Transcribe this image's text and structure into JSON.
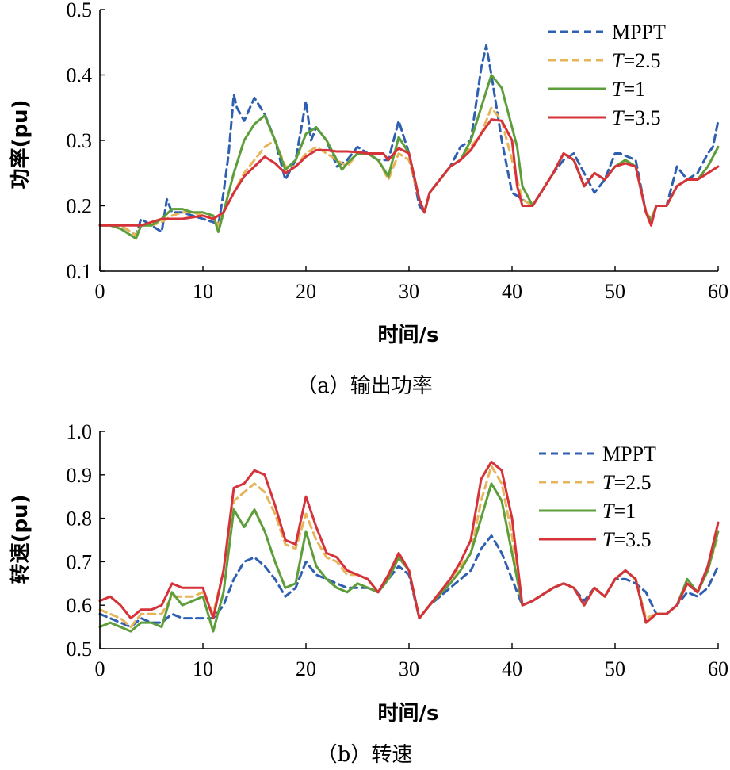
{
  "chart_data": [
    {
      "type": "line",
      "caption": "（a）输出功率",
      "xlabel": "时间/s",
      "ylabel": "功率(pu)",
      "xlim": [
        0,
        60
      ],
      "ylim": [
        0.1,
        0.5
      ],
      "xticks": [
        "0",
        "10",
        "20",
        "30",
        "40",
        "50",
        "60"
      ],
      "yticks": [
        "0.1",
        "0.2",
        "0.3",
        "0.4",
        "0.5"
      ],
      "legend_position": "top-right",
      "series": [
        {
          "name": "MPPT",
          "color": "#2e5fb0",
          "dash": true,
          "x": [
            0,
            1,
            2,
            3,
            3.5,
            4,
            5,
            6,
            6.5,
            7,
            8,
            9,
            10,
            11,
            11.5,
            12,
            12.5,
            13,
            13.3,
            14,
            15,
            16,
            17,
            18,
            19,
            20,
            20.5,
            21,
            22,
            23,
            24,
            25,
            26,
            27,
            28,
            28.5,
            29,
            30,
            31,
            31.5,
            32,
            34,
            35,
            36,
            37,
            37.5,
            38,
            39,
            40,
            41,
            42,
            44,
            45,
            46,
            47,
            48,
            49,
            50,
            50.5,
            52,
            53,
            53.5,
            54,
            55,
            56,
            57,
            58,
            59,
            59.5,
            60
          ],
          "y": [
            0.17,
            0.17,
            0.17,
            0.16,
            0.155,
            0.18,
            0.17,
            0.16,
            0.21,
            0.19,
            0.19,
            0.185,
            0.18,
            0.175,
            0.17,
            0.22,
            0.28,
            0.37,
            0.35,
            0.33,
            0.365,
            0.34,
            0.3,
            0.24,
            0.27,
            0.36,
            0.3,
            0.32,
            0.3,
            0.26,
            0.27,
            0.29,
            0.28,
            0.27,
            0.27,
            0.3,
            0.33,
            0.28,
            0.2,
            0.19,
            0.22,
            0.26,
            0.29,
            0.3,
            0.41,
            0.445,
            0.4,
            0.3,
            0.22,
            0.21,
            0.2,
            0.25,
            0.27,
            0.28,
            0.25,
            0.22,
            0.24,
            0.28,
            0.28,
            0.27,
            0.19,
            0.18,
            0.2,
            0.2,
            0.26,
            0.24,
            0.25,
            0.28,
            0.29,
            0.33
          ]
        },
        {
          "name": "T=2.5",
          "color": "#e6b55a",
          "dash": true,
          "x": [
            0,
            1,
            2,
            3,
            3.5,
            4,
            5,
            6,
            7,
            8,
            9,
            10,
            11,
            11.5,
            12,
            13,
            14,
            15,
            16,
            17,
            18,
            19,
            20,
            21,
            22,
            23,
            24,
            25,
            26,
            27,
            28,
            29,
            30,
            31,
            31.5,
            32,
            34,
            35,
            36,
            37,
            38,
            39,
            40,
            41,
            42,
            44,
            45,
            46,
            47,
            48,
            49,
            50,
            51,
            52,
            53,
            53.5,
            54,
            55,
            56,
            57,
            58,
            59,
            60
          ],
          "y": [
            0.17,
            0.17,
            0.17,
            0.16,
            0.155,
            0.17,
            0.17,
            0.175,
            0.185,
            0.19,
            0.19,
            0.185,
            0.18,
            0.17,
            0.19,
            0.22,
            0.25,
            0.27,
            0.29,
            0.3,
            0.26,
            0.26,
            0.28,
            0.29,
            0.28,
            0.27,
            0.26,
            0.28,
            0.28,
            0.27,
            0.24,
            0.28,
            0.27,
            0.21,
            0.19,
            0.22,
            0.26,
            0.27,
            0.29,
            0.31,
            0.35,
            0.33,
            0.27,
            0.21,
            0.2,
            0.25,
            0.28,
            0.27,
            0.23,
            0.25,
            0.24,
            0.26,
            0.27,
            0.26,
            0.19,
            0.18,
            0.2,
            0.2,
            0.23,
            0.24,
            0.24,
            0.25,
            0.26
          ]
        },
        {
          "name": "T=1",
          "color": "#5e9e3a",
          "dash": false,
          "x": [
            0,
            1,
            2,
            3,
            3.5,
            4,
            5,
            6,
            7,
            8,
            9,
            10,
            11,
            11.5,
            12,
            13,
            14,
            15,
            16,
            17,
            18,
            19,
            20,
            21,
            22,
            23,
            23.5,
            24,
            25,
            26,
            27,
            28,
            29,
            30,
            31,
            31.5,
            32,
            34,
            35,
            36,
            37,
            38,
            39,
            40,
            40.5,
            41,
            42,
            44,
            45,
            46,
            47,
            48,
            49,
            50,
            51,
            52,
            53,
            53.5,
            54,
            55,
            56,
            57,
            58,
            59,
            60
          ],
          "y": [
            0.17,
            0.17,
            0.165,
            0.155,
            0.15,
            0.17,
            0.17,
            0.18,
            0.195,
            0.195,
            0.19,
            0.19,
            0.185,
            0.16,
            0.19,
            0.25,
            0.3,
            0.325,
            0.338,
            0.3,
            0.255,
            0.27,
            0.31,
            0.32,
            0.3,
            0.27,
            0.255,
            0.265,
            0.28,
            0.28,
            0.27,
            0.245,
            0.305,
            0.28,
            0.21,
            0.19,
            0.22,
            0.26,
            0.27,
            0.3,
            0.35,
            0.4,
            0.38,
            0.32,
            0.29,
            0.23,
            0.2,
            0.25,
            0.28,
            0.27,
            0.23,
            0.25,
            0.24,
            0.26,
            0.27,
            0.26,
            0.19,
            0.175,
            0.2,
            0.2,
            0.23,
            0.24,
            0.24,
            0.26,
            0.29
          ]
        },
        {
          "name": "T=3.5",
          "color": "#d6323a",
          "dash": false,
          "x": [
            0,
            2,
            4,
            6,
            8,
            10,
            11,
            12,
            13,
            14,
            15,
            16,
            17,
            18,
            19,
            20,
            21,
            22,
            23,
            24,
            25,
            26,
            27,
            27.5,
            28,
            29,
            30,
            31,
            31.5,
            32,
            34,
            35,
            36,
            37,
            38,
            39,
            40,
            40.5,
            41,
            42,
            44,
            45,
            46,
            47,
            48,
            49,
            50,
            51,
            52,
            53,
            53.5,
            54,
            55,
            56,
            57,
            58,
            59,
            60
          ],
          "y": [
            0.17,
            0.17,
            0.17,
            0.18,
            0.18,
            0.185,
            0.18,
            0.19,
            0.22,
            0.245,
            0.26,
            0.275,
            0.265,
            0.25,
            0.26,
            0.275,
            0.285,
            0.285,
            0.283,
            0.283,
            0.282,
            0.28,
            0.28,
            0.28,
            0.27,
            0.288,
            0.28,
            0.21,
            0.19,
            0.22,
            0.26,
            0.27,
            0.285,
            0.31,
            0.332,
            0.33,
            0.3,
            0.23,
            0.2,
            0.2,
            0.25,
            0.28,
            0.27,
            0.23,
            0.25,
            0.24,
            0.26,
            0.265,
            0.26,
            0.19,
            0.17,
            0.2,
            0.2,
            0.23,
            0.24,
            0.24,
            0.25,
            0.26
          ]
        }
      ]
    },
    {
      "type": "line",
      "caption": "（b）转速",
      "xlabel": "时间/s",
      "ylabel": "转速(pu)",
      "xlim": [
        0,
        60
      ],
      "ylim": [
        0.5,
        1.0
      ],
      "xticks": [
        "0",
        "10",
        "20",
        "30",
        "40",
        "50",
        "60"
      ],
      "yticks": [
        "0.5",
        "0.6",
        "0.7",
        "0.8",
        "0.9",
        "1.0"
      ],
      "legend_position": "top-right",
      "series": [
        {
          "name": "MPPT",
          "color": "#2e5fb0",
          "dash": true,
          "x": [
            0,
            1,
            2,
            3,
            4,
            5,
            6,
            7,
            8,
            9,
            10,
            11,
            12,
            13,
            14,
            15,
            16,
            17,
            18,
            19,
            20,
            21,
            22,
            23,
            24,
            25,
            26,
            27,
            28,
            29,
            30,
            31,
            32,
            34,
            35,
            36,
            37,
            38,
            39,
            40,
            41,
            42,
            44,
            45,
            46,
            47,
            48,
            49,
            50,
            51,
            52,
            53,
            54,
            55,
            56,
            57,
            58,
            59,
            60
          ],
          "y": [
            0.58,
            0.57,
            0.56,
            0.55,
            0.57,
            0.56,
            0.56,
            0.58,
            0.57,
            0.57,
            0.57,
            0.57,
            0.6,
            0.66,
            0.7,
            0.71,
            0.69,
            0.66,
            0.62,
            0.64,
            0.7,
            0.67,
            0.66,
            0.65,
            0.64,
            0.64,
            0.64,
            0.63,
            0.66,
            0.69,
            0.67,
            0.57,
            0.6,
            0.64,
            0.66,
            0.68,
            0.73,
            0.76,
            0.72,
            0.66,
            0.6,
            0.61,
            0.64,
            0.65,
            0.64,
            0.61,
            0.64,
            0.62,
            0.66,
            0.66,
            0.65,
            0.63,
            0.58,
            0.58,
            0.6,
            0.63,
            0.62,
            0.64,
            0.69
          ]
        },
        {
          "name": "T=2.5",
          "color": "#e6b55a",
          "dash": true,
          "x": [
            0,
            1,
            2,
            3,
            4,
            5,
            6,
            7,
            8,
            9,
            10,
            11,
            12,
            13,
            14,
            15,
            16,
            17,
            18,
            19,
            20,
            21,
            22,
            23,
            24,
            25,
            26,
            27,
            28,
            29,
            30,
            31,
            32,
            34,
            35,
            36,
            37,
            38,
            39,
            40,
            41,
            42,
            44,
            45,
            46,
            47,
            48,
            49,
            50,
            51,
            52,
            53,
            54,
            55,
            56,
            57,
            58,
            59,
            60
          ],
          "y": [
            0.59,
            0.58,
            0.57,
            0.55,
            0.58,
            0.58,
            0.58,
            0.62,
            0.62,
            0.62,
            0.63,
            0.58,
            0.68,
            0.84,
            0.86,
            0.88,
            0.86,
            0.81,
            0.74,
            0.73,
            0.81,
            0.75,
            0.71,
            0.7,
            0.67,
            0.67,
            0.66,
            0.63,
            0.67,
            0.72,
            0.68,
            0.57,
            0.6,
            0.66,
            0.69,
            0.72,
            0.84,
            0.92,
            0.88,
            0.76,
            0.6,
            0.61,
            0.64,
            0.65,
            0.64,
            0.6,
            0.64,
            0.62,
            0.66,
            0.68,
            0.66,
            0.57,
            0.58,
            0.58,
            0.6,
            0.65,
            0.63,
            0.68,
            0.76
          ]
        },
        {
          "name": "T=1",
          "color": "#5e9e3a",
          "dash": false,
          "x": [
            0,
            1,
            2,
            3,
            4,
            5,
            6,
            7,
            8,
            9,
            10,
            11,
            12,
            13,
            14,
            15,
            16,
            17,
            18,
            19,
            20,
            21,
            22,
            23,
            24,
            25,
            26,
            27,
            28,
            29,
            30,
            31,
            32,
            34,
            35,
            36,
            37,
            38,
            39,
            40,
            41,
            42,
            44,
            45,
            46,
            47,
            48,
            49,
            50,
            51,
            52,
            53,
            54,
            55,
            56,
            57,
            58,
            59,
            60
          ],
          "y": [
            0.55,
            0.56,
            0.55,
            0.54,
            0.56,
            0.56,
            0.55,
            0.63,
            0.6,
            0.61,
            0.62,
            0.54,
            0.63,
            0.82,
            0.78,
            0.82,
            0.77,
            0.7,
            0.64,
            0.65,
            0.77,
            0.69,
            0.66,
            0.64,
            0.63,
            0.65,
            0.64,
            0.63,
            0.66,
            0.71,
            0.68,
            0.57,
            0.6,
            0.65,
            0.68,
            0.72,
            0.8,
            0.88,
            0.84,
            0.72,
            0.6,
            0.61,
            0.64,
            0.65,
            0.64,
            0.6,
            0.64,
            0.62,
            0.66,
            0.68,
            0.66,
            0.56,
            0.58,
            0.58,
            0.6,
            0.66,
            0.63,
            0.68,
            0.77
          ]
        },
        {
          "name": "T=3.5",
          "color": "#d6323a",
          "dash": false,
          "x": [
            0,
            1,
            2,
            3,
            4,
            5,
            6,
            7,
            8,
            9,
            10,
            11,
            12,
            13,
            14,
            15,
            16,
            17,
            18,
            19,
            20,
            21,
            22,
            23,
            24,
            25,
            26,
            27,
            28,
            29,
            30,
            31,
            32,
            34,
            35,
            36,
            37,
            38,
            39,
            40,
            41,
            42,
            44,
            45,
            46,
            47,
            48,
            49,
            50,
            51,
            52,
            53,
            54,
            55,
            56,
            57,
            58,
            59,
            60
          ],
          "y": [
            0.61,
            0.62,
            0.6,
            0.57,
            0.59,
            0.59,
            0.6,
            0.65,
            0.64,
            0.64,
            0.64,
            0.57,
            0.68,
            0.87,
            0.88,
            0.91,
            0.9,
            0.83,
            0.75,
            0.74,
            0.85,
            0.78,
            0.72,
            0.71,
            0.68,
            0.67,
            0.66,
            0.63,
            0.67,
            0.72,
            0.68,
            0.57,
            0.6,
            0.66,
            0.7,
            0.75,
            0.89,
            0.93,
            0.91,
            0.8,
            0.6,
            0.61,
            0.64,
            0.65,
            0.64,
            0.6,
            0.64,
            0.62,
            0.66,
            0.68,
            0.66,
            0.56,
            0.58,
            0.58,
            0.6,
            0.65,
            0.63,
            0.69,
            0.79
          ]
        }
      ]
    }
  ]
}
